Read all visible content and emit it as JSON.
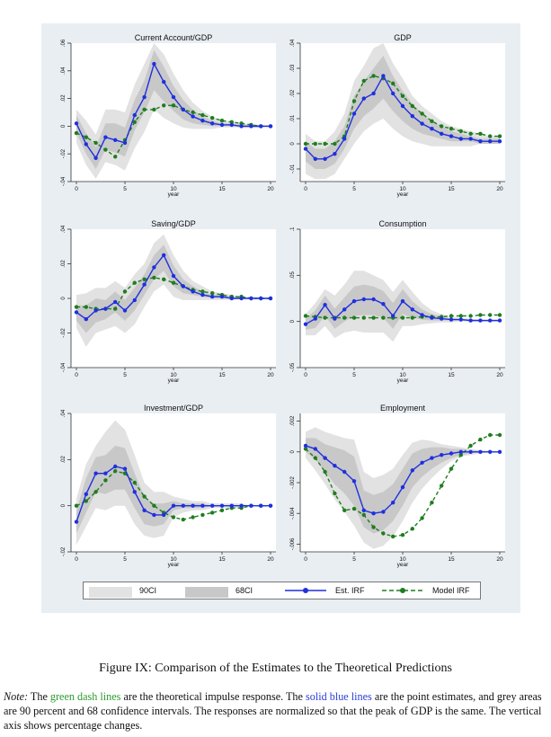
{
  "figure": {
    "caption": "Figure IX: Comparison of the Estimates to the Theoretical Predictions",
    "note": {
      "label": "Note:",
      "part1": "The ",
      "green_text": "green dash lines",
      "part2": " are the theoretical impulse response.  The ",
      "blue_text": "solid blue lines",
      "part3": " are the point estimates, and grey areas are 90 percent and 68 confidence intervals. The responses are normalized so that the peak of GDP is the same.  The vertical axis shows percentage changes."
    }
  },
  "legend": {
    "ci90": "90CI",
    "ci68": "68CI",
    "est": "Est. IRF",
    "model": "Model IRF"
  },
  "colors": {
    "panel_bg": "#e9eef3",
    "plot_bg": "#ffffff",
    "ci90": "#e2e2e2",
    "ci68": "#c8c8c8",
    "est": "#1f2fe0",
    "model": "#1e7d1e"
  },
  "chart_data": [
    {
      "type": "line",
      "title": "Current Account/GDP",
      "xlabel": "year",
      "xlim": [
        0,
        20
      ],
      "xticks": [
        0,
        5,
        10,
        15,
        20
      ],
      "ylim": [
        -0.04,
        0.06
      ],
      "yticks": [
        -0.04,
        -0.02,
        0,
        0.02,
        0.04,
        0.06
      ],
      "yticklabels": [
        "-.04",
        "-.02",
        "0",
        ".02",
        ".04",
        ".06"
      ],
      "est": [
        0.002,
        -0.013,
        -0.023,
        -0.008,
        -0.01,
        -0.012,
        0.008,
        0.021,
        0.045,
        0.032,
        0.021,
        0.012,
        0.007,
        0.004,
        0.002,
        0.001,
        0.001,
        0.0,
        0.0,
        0.0,
        0.0
      ],
      "model": [
        -0.005,
        -0.008,
        -0.012,
        -0.017,
        -0.022,
        -0.01,
        0.003,
        0.012,
        0.012,
        0.015,
        0.015,
        0.012,
        0.01,
        0.008,
        0.006,
        0.004,
        0.003,
        0.002,
        0.001,
        0.0,
        0.0
      ],
      "ci90_low": [
        -0.012,
        -0.028,
        -0.038,
        -0.026,
        -0.028,
        -0.032,
        -0.016,
        -0.004,
        0.012,
        0.006,
        0.002,
        -0.001,
        -0.002,
        -0.002,
        -0.002,
        -0.001,
        -0.001,
        -0.001,
        -0.001,
        -0.001,
        0.0
      ],
      "ci90_high": [
        0.012,
        0.004,
        -0.006,
        0.012,
        0.012,
        0.01,
        0.03,
        0.045,
        0.06,
        0.052,
        0.038,
        0.026,
        0.017,
        0.011,
        0.007,
        0.004,
        0.003,
        0.002,
        0.001,
        0.001,
        0.0
      ],
      "ci68_low": [
        -0.005,
        -0.02,
        -0.031,
        -0.017,
        -0.019,
        -0.022,
        -0.003,
        0.01,
        0.026,
        0.018,
        0.011,
        0.005,
        0.002,
        0.001,
        0.0,
        0.0,
        0.0,
        -0.001,
        -0.001,
        -0.001,
        0.0
      ],
      "ci68_high": [
        0.008,
        -0.005,
        -0.015,
        0.002,
        0.002,
        -0.001,
        0.019,
        0.033,
        0.055,
        0.043,
        0.029,
        0.019,
        0.012,
        0.007,
        0.004,
        0.002,
        0.002,
        0.001,
        0.001,
        0.001,
        0.0
      ]
    },
    {
      "type": "line",
      "title": "GDP",
      "xlabel": "year",
      "xlim": [
        0,
        20
      ],
      "xticks": [
        0,
        5,
        10,
        15,
        20
      ],
      "ylim": [
        -0.015,
        0.04
      ],
      "yticks": [
        -0.01,
        0,
        0.01,
        0.02,
        0.03,
        0.04
      ],
      "yticklabels": [
        "-.01",
        "0",
        ".01",
        ".02",
        ".03",
        ".04"
      ],
      "est": [
        -0.002,
        -0.006,
        -0.006,
        -0.004,
        0.002,
        0.012,
        0.018,
        0.02,
        0.027,
        0.02,
        0.015,
        0.011,
        0.008,
        0.006,
        0.004,
        0.003,
        0.002,
        0.002,
        0.001,
        0.001,
        0.001
      ],
      "model": [
        0.0,
        0.0,
        0.0,
        0.0,
        0.003,
        0.017,
        0.025,
        0.027,
        0.026,
        0.024,
        0.019,
        0.015,
        0.012,
        0.009,
        0.007,
        0.006,
        0.005,
        0.004,
        0.004,
        0.003,
        0.003
      ],
      "ci90_low": [
        -0.012,
        -0.014,
        -0.014,
        -0.012,
        -0.006,
        0.0,
        0.005,
        0.008,
        0.01,
        0.006,
        0.003,
        0.001,
        0.0,
        -0.001,
        -0.001,
        -0.001,
        -0.001,
        -0.001,
        0.0,
        0.0,
        0.0
      ],
      "ci90_high": [
        0.004,
        0.001,
        0.001,
        0.005,
        0.012,
        0.025,
        0.031,
        0.038,
        0.04,
        0.032,
        0.026,
        0.019,
        0.015,
        0.012,
        0.009,
        0.007,
        0.006,
        0.005,
        0.004,
        0.003,
        0.003
      ],
      "ci68_low": [
        -0.007,
        -0.01,
        -0.01,
        -0.008,
        -0.002,
        0.006,
        0.011,
        0.014,
        0.018,
        0.013,
        0.009,
        0.006,
        0.004,
        0.003,
        0.002,
        0.001,
        0.001,
        0.001,
        0.0,
        0.0,
        0.0
      ],
      "ci68_high": [
        0.001,
        -0.002,
        -0.002,
        0.001,
        0.007,
        0.019,
        0.025,
        0.03,
        0.035,
        0.027,
        0.021,
        0.016,
        0.012,
        0.009,
        0.007,
        0.005,
        0.004,
        0.003,
        0.002,
        0.002,
        0.002
      ]
    },
    {
      "type": "line",
      "title": "Saving/GDP",
      "xlabel": "year",
      "xlim": [
        0,
        20
      ],
      "xticks": [
        0,
        5,
        10,
        15,
        20
      ],
      "ylim": [
        -0.04,
        0.04
      ],
      "yticks": [
        -0.04,
        -0.02,
        0,
        0.02,
        0.04
      ],
      "yticklabels": [
        "-.04",
        "-.02",
        "0",
        ".02",
        ".04"
      ],
      "est": [
        -0.008,
        -0.012,
        -0.007,
        -0.006,
        -0.002,
        -0.007,
        -0.001,
        0.008,
        0.018,
        0.025,
        0.013,
        0.007,
        0.004,
        0.002,
        0.001,
        0.001,
        0.0,
        0.0,
        0.0,
        0.0,
        0.0
      ],
      "model": [
        -0.005,
        -0.005,
        -0.006,
        -0.006,
        -0.006,
        0.004,
        0.009,
        0.011,
        0.012,
        0.011,
        0.009,
        0.007,
        0.005,
        0.004,
        0.003,
        0.002,
        0.001,
        0.001,
        0.0,
        0.0,
        0.0
      ],
      "ci90_low": [
        -0.017,
        -0.028,
        -0.02,
        -0.018,
        -0.016,
        -0.02,
        -0.015,
        -0.005,
        0.004,
        0.008,
        0.001,
        -0.001,
        -0.001,
        -0.001,
        -0.001,
        -0.001,
        -0.001,
        0.0,
        0.0,
        0.0,
        0.0
      ],
      "ci90_high": [
        0.002,
        0.003,
        0.006,
        0.006,
        0.01,
        0.006,
        0.014,
        0.02,
        0.032,
        0.037,
        0.025,
        0.016,
        0.01,
        0.007,
        0.004,
        0.003,
        0.002,
        0.001,
        0.001,
        0.001,
        0.0
      ],
      "ci68_low": [
        -0.013,
        -0.02,
        -0.014,
        -0.012,
        -0.008,
        -0.013,
        -0.007,
        0.002,
        0.011,
        0.016,
        0.007,
        0.003,
        0.002,
        0.001,
        0.0,
        0.0,
        0.0,
        0.0,
        0.0,
        0.0,
        0.0
      ],
      "ci68_high": [
        -0.004,
        -0.004,
        0.0,
        -0.001,
        0.004,
        -0.001,
        0.006,
        0.014,
        0.025,
        0.031,
        0.019,
        0.011,
        0.007,
        0.004,
        0.002,
        0.002,
        0.001,
        0.001,
        0.0,
        0.0,
        0.0
      ]
    },
    {
      "type": "line",
      "title": "Consumption",
      "xlabel": "year",
      "xlim": [
        0,
        20
      ],
      "xticks": [
        0,
        5,
        10,
        15,
        20
      ],
      "ylim": [
        -0.05,
        0.1
      ],
      "yticks": [
        -0.05,
        0,
        0.05,
        0.1
      ],
      "yticklabels": [
        "-.05",
        "0",
        ".05",
        ".1"
      ],
      "est": [
        -0.003,
        0.003,
        0.018,
        0.003,
        0.013,
        0.022,
        0.024,
        0.024,
        0.019,
        0.006,
        0.022,
        0.013,
        0.007,
        0.004,
        0.003,
        0.002,
        0.002,
        0.001,
        0.001,
        0.001,
        0.001
      ],
      "model": [
        0.006,
        0.005,
        0.004,
        0.004,
        0.004,
        0.004,
        0.004,
        0.004,
        0.004,
        0.004,
        0.004,
        0.004,
        0.005,
        0.005,
        0.005,
        0.006,
        0.006,
        0.006,
        0.007,
        0.007,
        0.007
      ],
      "ci90_low": [
        -0.015,
        -0.015,
        -0.005,
        -0.018,
        -0.012,
        -0.01,
        -0.012,
        -0.012,
        -0.012,
        -0.022,
        -0.005,
        -0.005,
        -0.003,
        -0.002,
        -0.001,
        -0.001,
        0.0,
        0.0,
        0.0,
        0.0,
        0.0
      ],
      "ci90_high": [
        0.008,
        0.02,
        0.035,
        0.028,
        0.04,
        0.055,
        0.055,
        0.05,
        0.045,
        0.032,
        0.045,
        0.032,
        0.02,
        0.012,
        0.008,
        0.005,
        0.004,
        0.003,
        0.002,
        0.002,
        0.002
      ],
      "ci68_low": [
        -0.009,
        -0.007,
        0.006,
        -0.008,
        0.0,
        0.006,
        0.007,
        0.007,
        0.004,
        -0.008,
        0.008,
        0.004,
        0.002,
        0.001,
        0.001,
        0.001,
        0.001,
        0.0,
        0.0,
        0.0,
        0.0
      ],
      "ci68_high": [
        0.003,
        0.012,
        0.028,
        0.014,
        0.026,
        0.038,
        0.04,
        0.038,
        0.033,
        0.02,
        0.035,
        0.022,
        0.013,
        0.008,
        0.005,
        0.003,
        0.003,
        0.002,
        0.002,
        0.001,
        0.001
      ]
    },
    {
      "type": "line",
      "title": "Investment/GDP",
      "xlabel": "year",
      "xlim": [
        0,
        20
      ],
      "xticks": [
        0,
        5,
        10,
        15,
        20
      ],
      "ylim": [
        -0.02,
        0.04
      ],
      "yticks": [
        -0.02,
        0,
        0.02,
        0.04
      ],
      "yticklabels": [
        "-.02",
        "0",
        ".02",
        ".04"
      ],
      "est": [
        -0.007,
        0.005,
        0.014,
        0.014,
        0.017,
        0.016,
        0.006,
        -0.002,
        -0.004,
        -0.004,
        0.0,
        0.0,
        0.0,
        0.0,
        0.0,
        0.0,
        0.0,
        0.0,
        0.0,
        0.0,
        0.0
      ],
      "model": [
        0.0,
        0.002,
        0.006,
        0.011,
        0.015,
        0.014,
        0.01,
        0.004,
        0.0,
        -0.003,
        -0.005,
        -0.006,
        -0.005,
        -0.004,
        -0.003,
        -0.002,
        -0.001,
        -0.001,
        0.0,
        0.0,
        0.0
      ],
      "ci90_low": [
        -0.017,
        -0.009,
        -0.001,
        -0.002,
        0.0,
        0.0,
        -0.008,
        -0.013,
        -0.014,
        -0.013,
        -0.005,
        -0.003,
        -0.002,
        -0.002,
        -0.001,
        -0.001,
        -0.001,
        -0.001,
        0.0,
        0.0,
        0.0
      ],
      "ci90_high": [
        0.003,
        0.018,
        0.026,
        0.032,
        0.037,
        0.033,
        0.022,
        0.01,
        0.006,
        0.006,
        0.004,
        0.003,
        0.002,
        0.002,
        0.001,
        0.001,
        0.001,
        0.001,
        0.0,
        0.0,
        0.0
      ],
      "ci68_low": [
        -0.012,
        -0.003,
        0.006,
        0.005,
        0.007,
        0.007,
        -0.001,
        -0.008,
        -0.009,
        -0.008,
        -0.002,
        -0.001,
        -0.001,
        -0.001,
        0.0,
        0.0,
        0.0,
        0.0,
        0.0,
        0.0,
        0.0
      ],
      "ci68_high": [
        -0.002,
        0.012,
        0.021,
        0.022,
        0.026,
        0.025,
        0.014,
        0.004,
        0.001,
        0.001,
        0.002,
        0.001,
        0.001,
        0.001,
        0.0,
        0.0,
        0.0,
        0.0,
        0.0,
        0.0,
        0.0
      ]
    },
    {
      "type": "line",
      "title": "Employment",
      "xlabel": "year",
      "xlim": [
        0,
        20
      ],
      "xticks": [
        0,
        5,
        10,
        15,
        20
      ],
      "ylim": [
        -0.0065,
        0.0025
      ],
      "yticks": [
        -0.006,
        -0.004,
        -0.002,
        0,
        0.002
      ],
      "yticklabels": [
        "-.006",
        "-.004",
        "-.002",
        "0",
        ".002"
      ],
      "est": [
        0.0004,
        0.0002,
        -0.0004,
        -0.0009,
        -0.0013,
        -0.0019,
        -0.0038,
        -0.004,
        -0.0039,
        -0.0033,
        -0.0023,
        -0.0012,
        -0.0007,
        -0.0004,
        -0.0002,
        -0.0001,
        0.0,
        0.0,
        0.0,
        0.0,
        0.0
      ],
      "model": [
        0.0002,
        -0.0004,
        -0.0013,
        -0.0027,
        -0.0038,
        -0.0037,
        -0.0041,
        -0.0049,
        -0.0053,
        -0.0055,
        -0.0054,
        -0.005,
        -0.0043,
        -0.0033,
        -0.0022,
        -0.0011,
        -0.0002,
        0.0004,
        0.0008,
        0.0011,
        0.0011
      ],
      "ci90_low": [
        -0.0004,
        -0.0012,
        -0.0021,
        -0.0031,
        -0.0039,
        -0.0048,
        -0.0059,
        -0.0063,
        -0.0061,
        -0.0055,
        -0.0045,
        -0.0033,
        -0.0024,
        -0.0017,
        -0.0011,
        -0.0006,
        -0.0003,
        -0.0002,
        -0.0001,
        0.0,
        0.0
      ],
      "ci90_high": [
        0.0013,
        0.0016,
        0.0013,
        0.0011,
        0.0009,
        0.0008,
        -0.0013,
        -0.0017,
        -0.0015,
        -0.0011,
        -0.0002,
        0.0006,
        0.0008,
        0.0007,
        0.0005,
        0.0004,
        0.0003,
        0.0002,
        0.0001,
        0.0001,
        0.0
      ],
      "ci68_low": [
        0.0,
        -0.0005,
        -0.0013,
        -0.0021,
        -0.0027,
        -0.0035,
        -0.0049,
        -0.0053,
        -0.0051,
        -0.0045,
        -0.0035,
        -0.0023,
        -0.0016,
        -0.0011,
        -0.0007,
        -0.0004,
        -0.0002,
        -0.0001,
        0.0,
        0.0,
        0.0
      ],
      "ci68_high": [
        0.0009,
        0.0009,
        0.0005,
        0.0003,
        0.0001,
        -0.0003,
        -0.0025,
        -0.0028,
        -0.0026,
        -0.0021,
        -0.0011,
        -0.0001,
        0.0002,
        0.0003,
        0.0003,
        0.0002,
        0.0002,
        0.0001,
        0.0001,
        0.0,
        0.0
      ]
    }
  ]
}
